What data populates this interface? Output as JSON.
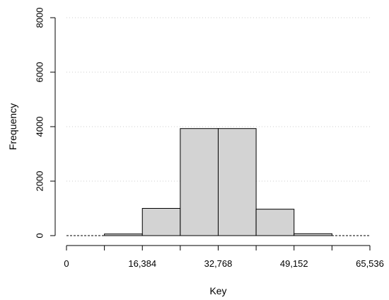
{
  "chart_data": {
    "type": "bar",
    "xlabel": "Key",
    "ylabel": "Frequency",
    "xlim": [
      0,
      65536
    ],
    "ylim": [
      0,
      8000
    ],
    "x_ticks": [
      0,
      16384,
      32768,
      49152,
      65536
    ],
    "x_tick_labels": [
      "0",
      "16,384",
      "32,768",
      "49,152",
      "65,536"
    ],
    "y_ticks": [
      0,
      2000,
      4000,
      6000,
      8000
    ],
    "y_tick_labels": [
      "0",
      "2000",
      "4000",
      "6000",
      "8000"
    ],
    "grid": "horizontal dotted",
    "bin_edges": [
      0,
      8192,
      16384,
      24576,
      32768,
      40960,
      49152,
      57344,
      65536
    ],
    "values": [
      0,
      60,
      1000,
      3930,
      3930,
      970,
      70,
      0
    ],
    "colors": {
      "bar_fill": "#d3d3d3",
      "bar_stroke": "#000000",
      "grid": "#cccccc"
    }
  }
}
